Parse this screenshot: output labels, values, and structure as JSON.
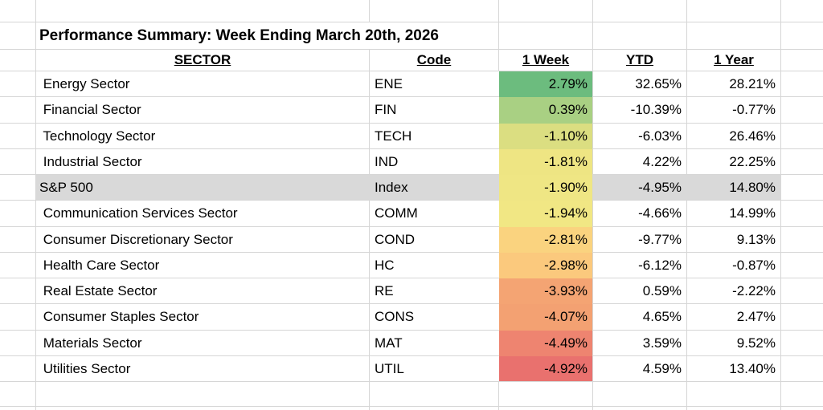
{
  "sheet": {
    "title": "Performance Summary: Week Ending March 20th, 2026"
  },
  "headers": {
    "sector": "SECTOR",
    "code": "Code",
    "week": "1 Week",
    "ytd": "YTD",
    "year": "1 Year"
  },
  "colors": {
    "highlight_row": "#d9d9d9",
    "gridline": "#d6d6d6",
    "heatmap_scale_max_green": "#63be7b",
    "heatmap_scale_mid_yellow": "#ffeb84",
    "heatmap_scale_min_red": "#f8696b"
  },
  "rows": [
    {
      "sector": " Energy Sector",
      "code": "ENE",
      "week": "2.79%",
      "ytd": "32.65%",
      "year": "28.21%",
      "week_bg": "#6cbc7e",
      "highlighted": false
    },
    {
      "sector": " Financial Sector",
      "code": "FIN",
      "week": "0.39%",
      "ytd": "-10.39%",
      "year": "-0.77%",
      "week_bg": "#a9d083",
      "highlighted": false
    },
    {
      "sector": " Technology Sector",
      "code": "TECH",
      "week": "-1.10%",
      "ytd": "-6.03%",
      "year": "26.46%",
      "week_bg": "#dbde81",
      "highlighted": false
    },
    {
      "sector": " Industrial Sector",
      "code": "IND",
      "week": "-1.81%",
      "ytd": "4.22%",
      "year": "22.25%",
      "week_bg": "#eee583",
      "highlighted": false
    },
    {
      "sector": "S&P 500",
      "code": "Index",
      "week": "-1.90%",
      "ytd": "-4.95%",
      "year": "14.80%",
      "week_bg": "#efe684",
      "highlighted": true
    },
    {
      "sector": " Communication Services Sector",
      "code": "COMM",
      "week": "-1.94%",
      "ytd": "-4.66%",
      "year": "14.99%",
      "week_bg": "#f1e784",
      "highlighted": false
    },
    {
      "sector": " Consumer Discretionary Sector",
      "code": "COND",
      "week": "-2.81%",
      "ytd": "-9.77%",
      "year": "9.13%",
      "week_bg": "#fad37f",
      "highlighted": false
    },
    {
      "sector": " Health Care Sector",
      "code": "HC",
      "week": "-2.98%",
      "ytd": "-6.12%",
      "year": "-0.87%",
      "week_bg": "#fbc97d",
      "highlighted": false
    },
    {
      "sector": " Real Estate Sector",
      "code": "RE",
      "week": "-3.93%",
      "ytd": "0.59%",
      "year": "-2.22%",
      "week_bg": "#f4a473",
      "highlighted": false
    },
    {
      "sector": " Consumer Staples Sector",
      "code": "CONS",
      "week": "-4.07%",
      "ytd": "4.65%",
      "year": "2.47%",
      "week_bg": "#f3a172",
      "highlighted": false
    },
    {
      "sector": " Materials Sector",
      "code": "MAT",
      "week": "-4.49%",
      "ytd": "3.59%",
      "year": "9.52%",
      "week_bg": "#ee8470",
      "highlighted": false
    },
    {
      "sector": " Utilities Sector",
      "code": "UTIL",
      "week": "-4.92%",
      "ytd": "4.59%",
      "year": "13.40%",
      "week_bg": "#e9716e",
      "highlighted": false
    }
  ]
}
